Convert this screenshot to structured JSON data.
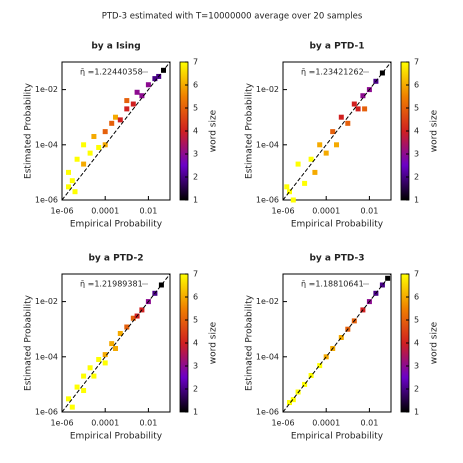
{
  "title": "PTD-3 estimated with T=10000000 average over 20 samples",
  "chart_data": [
    {
      "type": "scatter",
      "title": "by a Ising",
      "annotation": "η̄ =1.22440358",
      "xlabel": "Empirical Probability",
      "ylabel": "Estimated Probability",
      "log_x": true,
      "log_y": true,
      "xlim": [
        1e-06,
        0.1
      ],
      "ylim": [
        1e-06,
        0.1
      ],
      "xticks": [
        {
          "value": 1e-06,
          "label": "1e-06"
        },
        0.0001,
        0.01
      ],
      "yticks": [
        {
          "value": 1e-06,
          "label": "1e-06"
        },
        {
          "value": 0.0001,
          "label": "1e-04"
        },
        {
          "value": 0.01,
          "label": "1e-02"
        }
      ],
      "colorbar": {
        "label": "word size",
        "lim": [
          1,
          7
        ],
        "ticks": [
          1,
          2,
          3,
          4,
          5,
          6,
          7
        ],
        "colors": [
          "#000000",
          "#6a00c8",
          "#d02020",
          "#f08000",
          "#ffff00"
        ]
      },
      "x": [
        2e-06,
        3e-06,
        5e-06,
        1e-05,
        1e-05,
        2e-05,
        3e-05,
        5e-05,
        0.0001,
        0.0001,
        0.0002,
        0.0003,
        0.0005,
        0.001,
        0.001,
        0.002,
        0.003,
        0.005,
        0.01,
        0.02,
        0.03,
        0.05,
        4e-06,
        2e-06
      ],
      "y": [
        1e-05,
        5e-06,
        3e-05,
        2e-05,
        0.0001,
        5e-05,
        0.0002,
        8e-05,
        0.0003,
        0.0001,
        0.0006,
        0.001,
        0.0008,
        0.002,
        0.004,
        0.003,
        0.008,
        0.006,
        0.015,
        0.025,
        0.03,
        0.05,
        2e-06,
        3e-06
      ],
      "word_size": [
        7,
        7,
        7,
        6,
        7,
        7,
        6,
        7,
        5,
        6,
        5,
        6,
        4,
        4,
        5,
        4,
        3,
        3,
        3,
        2,
        2,
        1,
        7,
        7
      ]
    },
    {
      "type": "scatter",
      "title": "by a PTD-1",
      "annotation": "η̄ =1.23421262",
      "xlabel": "Empirical Probability",
      "ylabel": "Estimated Probability",
      "log_x": true,
      "log_y": true,
      "xlim": [
        1e-06,
        0.1
      ],
      "ylim": [
        1e-06,
        0.1
      ],
      "xticks": [
        {
          "value": 1e-06,
          "label": "1e-06"
        },
        0.0001,
        0.01
      ],
      "yticks": [
        {
          "value": 1e-06,
          "label": "1e-06"
        },
        {
          "value": 0.0001,
          "label": "1e-04"
        },
        {
          "value": 0.01,
          "label": "1e-02"
        }
      ],
      "colorbar": {
        "label": "word size",
        "lim": [
          1,
          7
        ],
        "ticks": [
          1,
          2,
          3,
          4,
          5,
          6,
          7
        ],
        "colors": [
          "#000000",
          "#6a00c8",
          "#d02020",
          "#f08000",
          "#ffff00"
        ]
      },
      "x": [
        2e-06,
        3e-06,
        5e-06,
        1e-05,
        2e-05,
        3e-05,
        5e-05,
        0.0001,
        0.0002,
        0.0003,
        0.0005,
        0.001,
        0.002,
        0.003,
        0.005,
        0.01,
        0.02,
        0.04,
        0.006,
        1.5e-06
      ],
      "y": [
        2e-06,
        1e-06,
        2e-05,
        4e-06,
        3e-05,
        1e-05,
        0.0001,
        5e-05,
        0.0003,
        0.0001,
        0.001,
        0.0006,
        0.003,
        0.002,
        0.006,
        0.01,
        0.02,
        0.04,
        0.002,
        3e-06
      ],
      "word_size": [
        7,
        7,
        7,
        7,
        7,
        6,
        6,
        6,
        5,
        6,
        4,
        5,
        4,
        4,
        3,
        3,
        2,
        1,
        5,
        7
      ]
    },
    {
      "type": "scatter",
      "title": "by a PTD-2",
      "annotation": "η̄ =1.21989381",
      "xlabel": "Empirical Probability",
      "ylabel": "Estimated Probability",
      "log_x": true,
      "log_y": true,
      "xlim": [
        1e-06,
        0.1
      ],
      "ylim": [
        1e-06,
        0.1
      ],
      "xticks": [
        {
          "value": 1e-06,
          "label": "1e-06"
        },
        0.0001,
        0.01
      ],
      "yticks": [
        {
          "value": 1e-06,
          "label": "1e-06"
        },
        {
          "value": 0.0001,
          "label": "1e-04"
        },
        {
          "value": 0.01,
          "label": "1e-02"
        }
      ],
      "colorbar": {
        "label": "word size",
        "lim": [
          1,
          7
        ],
        "ticks": [
          1,
          2,
          3,
          4,
          5,
          6,
          7
        ],
        "colors": [
          "#000000",
          "#6a00c8",
          "#d02020",
          "#f08000",
          "#ffff00"
        ]
      },
      "x": [
        2e-06,
        3e-06,
        5e-06,
        1e-05,
        2e-05,
        3e-05,
        5e-05,
        0.0001,
        0.0002,
        0.0003,
        0.0005,
        0.001,
        0.002,
        0.003,
        0.005,
        0.01,
        0.02,
        0.04,
        1e-05,
        0.0001
      ],
      "y": [
        3e-06,
        1.5e-06,
        8e-06,
        6e-06,
        4e-05,
        2e-05,
        8e-05,
        0.00012,
        0.0003,
        0.0002,
        0.0007,
        0.0012,
        0.0025,
        0.003,
        0.005,
        0.01,
        0.02,
        0.04,
        2e-05,
        6e-05
      ],
      "word_size": [
        7,
        7,
        7,
        7,
        7,
        7,
        7,
        6,
        6,
        6,
        6,
        5,
        5,
        4,
        4,
        3,
        2,
        1,
        7,
        7
      ]
    },
    {
      "type": "scatter",
      "title": "by a PTD-3",
      "annotation": "η̄ =1.18810641",
      "xlabel": "Empirical Probability",
      "ylabel": "Estimated Probability",
      "log_x": true,
      "log_y": true,
      "xlim": [
        1e-06,
        0.1
      ],
      "ylim": [
        1e-06,
        0.1
      ],
      "xticks": [
        {
          "value": 1e-06,
          "label": "1e-06"
        },
        0.0001,
        0.01
      ],
      "yticks": [
        {
          "value": 1e-06,
          "label": "1e-06"
        },
        {
          "value": 0.0001,
          "label": "1e-04"
        },
        {
          "value": 0.01,
          "label": "1e-02"
        }
      ],
      "colorbar": {
        "label": "word size",
        "lim": [
          1,
          7
        ],
        "ticks": [
          1,
          2,
          3,
          4,
          5,
          6,
          7
        ],
        "colors": [
          "#000000",
          "#6a00c8",
          "#d02020",
          "#f08000",
          "#ffff00"
        ]
      },
      "x": [
        2e-06,
        3e-06,
        5e-06,
        1e-05,
        2e-05,
        5e-05,
        0.0001,
        0.0002,
        0.0005,
        0.001,
        0.002,
        0.005,
        0.01,
        0.02,
        0.04,
        0.07
      ],
      "y": [
        2.2e-06,
        2.8e-06,
        5.3e-06,
        1e-05,
        2.1e-05,
        4.8e-05,
        0.0001,
        0.0002,
        0.0005,
        0.001,
        0.002,
        0.005,
        0.01,
        0.02,
        0.04,
        0.07
      ],
      "word_size": [
        7,
        7,
        7,
        7,
        7,
        7,
        6,
        6,
        6,
        5,
        5,
        4,
        3,
        2,
        2,
        1
      ]
    }
  ]
}
